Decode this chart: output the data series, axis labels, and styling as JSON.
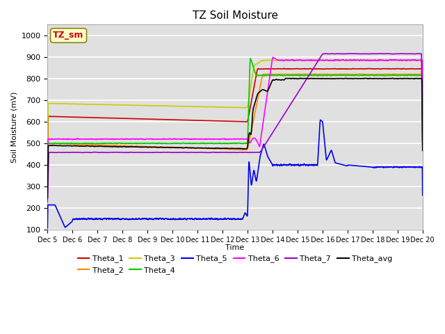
{
  "title": "TZ Soil Moisture",
  "ylabel": "Soil Moisture (mV)",
  "xlabel": "Time",
  "ylim": [
    100,
    1050
  ],
  "yticks": [
    100,
    200,
    300,
    400,
    500,
    600,
    700,
    800,
    900,
    1000
  ],
  "x_labels": [
    "Dec 5",
    "Dec 6",
    "Dec 7",
    "Dec 8",
    "Dec 9",
    "Dec 10",
    "Dec 11",
    "Dec 12",
    "Dec 13",
    "Dec 14",
    "Dec 15",
    "Dec 16",
    "Dec 17",
    "Dec 18",
    "Dec 19",
    "Dec 20"
  ],
  "annotation_label": "TZ_sm",
  "annotation_color": "#cc0000",
  "annotation_bg": "#ffffcc",
  "bg_color": "#e0e0e0",
  "grid_color": "#ffffff",
  "series": {
    "Theta_1": {
      "color": "#cc0000",
      "linewidth": 1.2
    },
    "Theta_2": {
      "color": "#ff8800",
      "linewidth": 1.2
    },
    "Theta_3": {
      "color": "#cccc00",
      "linewidth": 1.2
    },
    "Theta_4": {
      "color": "#00cc00",
      "linewidth": 1.2
    },
    "Theta_5": {
      "color": "#0000ee",
      "linewidth": 1.2
    },
    "Theta_6": {
      "color": "#ff00ff",
      "linewidth": 1.2
    },
    "Theta_7": {
      "color": "#9900cc",
      "linewidth": 1.2
    },
    "Theta_avg": {
      "color": "#000000",
      "linewidth": 1.2
    }
  }
}
